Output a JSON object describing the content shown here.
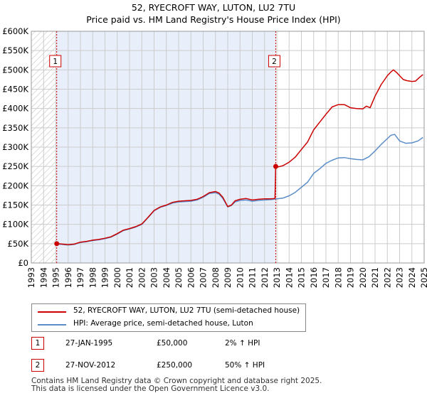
{
  "chart_data": {
    "type": "line",
    "title": "52, RYECROFT WAY, LUTON, LU2 7TU",
    "subtitle": "Price paid vs. HM Land Registry's House Price Index (HPI)",
    "xlim": [
      1993,
      2025
    ],
    "ylim": [
      0,
      600000
    ],
    "x_ticks": [
      "1993",
      "1994",
      "1995",
      "1996",
      "1997",
      "1998",
      "1999",
      "2000",
      "2001",
      "2002",
      "2003",
      "2004",
      "2005",
      "2006",
      "2007",
      "2008",
      "2009",
      "2010",
      "2011",
      "2012",
      "2013",
      "2014",
      "2015",
      "2016",
      "2017",
      "2018",
      "2019",
      "2020",
      "2021",
      "2022",
      "2023",
      "2024",
      "2025"
    ],
    "y_ticks": [
      {
        "value": 0,
        "label": "£0"
      },
      {
        "value": 50000,
        "label": "£50K"
      },
      {
        "value": 100000,
        "label": "£100K"
      },
      {
        "value": 150000,
        "label": "£150K"
      },
      {
        "value": 200000,
        "label": "£200K"
      },
      {
        "value": 250000,
        "label": "£250K"
      },
      {
        "value": 300000,
        "label": "£300K"
      },
      {
        "value": 350000,
        "label": "£350K"
      },
      {
        "value": 400000,
        "label": "£400K"
      },
      {
        "value": 450000,
        "label": "£450K"
      },
      {
        "value": 500000,
        "label": "£500K"
      },
      {
        "value": 550000,
        "label": "£550K"
      },
      {
        "value": 600000,
        "label": "£600K"
      }
    ],
    "ownership_shade": {
      "from": 1995.07,
      "to": 2012.91
    },
    "hatch_before": 1995.07,
    "series": [
      {
        "name": "52, RYECROFT WAY, LUTON, LU2 7TU (semi-detached house)",
        "color": "#cc0000",
        "x": [
          1995.07,
          1995.5,
          1996,
          1996.5,
          1997,
          1997.5,
          1998,
          1998.5,
          1999,
          1999.5,
          2000,
          2000.5,
          2001,
          2001.5,
          2002,
          2002.5,
          2003,
          2003.5,
          2004,
          2004.5,
          2005,
          2005.5,
          2006,
          2006.5,
          2007,
          2007.5,
          2008,
          2008.3,
          2008.6,
          2009,
          2009.3,
          2009.6,
          2010,
          2010.5,
          2011,
          2011.5,
          2012,
          2012.5,
          2012.85,
          2012.91,
          2013,
          2013.5,
          2014,
          2014.5,
          2015,
          2015.5,
          2016,
          2016.5,
          2017,
          2017.5,
          2018,
          2018.5,
          2019,
          2019.5,
          2020,
          2020.3,
          2020.6,
          2021,
          2021.5,
          2022,
          2022.3,
          2022.5,
          2022.8,
          2023,
          2023.3,
          2023.6,
          2024,
          2024.3,
          2024.6,
          2024.9
        ],
        "y": [
          50000,
          49000,
          47500,
          49000,
          54000,
          56000,
          59000,
          61000,
          64000,
          68000,
          76000,
          85000,
          89000,
          94000,
          101000,
          118000,
          136000,
          145000,
          150000,
          157000,
          160000,
          161000,
          162000,
          165000,
          172000,
          182000,
          185000,
          181000,
          170000,
          146000,
          150000,
          161000,
          165000,
          167000,
          163000,
          165000,
          166000,
          166000,
          167000,
          250000,
          248000,
          252000,
          261000,
          274000,
          294000,
          313000,
          345000,
          365000,
          385000,
          404000,
          410000,
          410000,
          402000,
          400000,
          399000,
          406000,
          402000,
          432000,
          462000,
          485000,
          495000,
          500000,
          492000,
          485000,
          475000,
          472000,
          470000,
          471000,
          480000,
          488000
        ]
      },
      {
        "name": "HPI: Average price, semi-detached house, Luton",
        "color": "#5b8ec9",
        "x": [
          1995.07,
          1995.5,
          1996,
          1996.5,
          1997,
          1997.5,
          1998,
          1998.5,
          1999,
          1999.5,
          2000,
          2000.5,
          2001,
          2001.5,
          2002,
          2002.5,
          2003,
          2003.5,
          2004,
          2004.5,
          2005,
          2005.5,
          2006,
          2006.5,
          2007,
          2007.5,
          2008,
          2008.3,
          2008.6,
          2009,
          2009.3,
          2009.6,
          2010,
          2010.5,
          2011,
          2011.5,
          2012,
          2012.5,
          2013,
          2013.5,
          2014,
          2014.5,
          2015,
          2015.5,
          2016,
          2016.5,
          2017,
          2017.5,
          2018,
          2018.5,
          2019,
          2019.5,
          2020,
          2020.5,
          2021,
          2021.5,
          2022,
          2022.3,
          2022.6,
          2023,
          2023.5,
          2024,
          2024.5,
          2024.9
        ],
        "y": [
          49000,
          48000,
          46500,
          48000,
          53000,
          55000,
          58000,
          60000,
          63000,
          67000,
          75000,
          84000,
          88000,
          93000,
          100000,
          117000,
          135000,
          144000,
          149000,
          155000,
          158000,
          159000,
          160000,
          163000,
          170000,
          180000,
          182000,
          178000,
          167000,
          145000,
          149000,
          158000,
          162000,
          163000,
          160000,
          162000,
          163000,
          164000,
          166000,
          168000,
          174000,
          183000,
          196000,
          209000,
          232000,
          244000,
          258000,
          266000,
          272000,
          273000,
          270000,
          268000,
          267000,
          275000,
          290000,
          307000,
          322000,
          331000,
          333000,
          316000,
          310000,
          311000,
          316000,
          325000
        ]
      }
    ],
    "transactions": [
      {
        "id": "1",
        "date": "27-JAN-1995",
        "x": 1995.07,
        "price": 50000,
        "price_label": "£50,000",
        "hpi": "2% ↑ HPI"
      },
      {
        "id": "2",
        "date": "27-NOV-2012",
        "x": 2012.91,
        "price": 250000,
        "price_label": "£250,000",
        "hpi": "50% ↑ HPI"
      }
    ]
  },
  "footer": {
    "line1": "Contains HM Land Registry data © Crown copyright and database right 2025.",
    "line2": "This data is licensed under the Open Government Licence v3.0."
  },
  "colors": {
    "property": "#cc0000",
    "hpi": "#5b8ec9",
    "shade": "#e8eefa",
    "grid": "#cccccc"
  }
}
